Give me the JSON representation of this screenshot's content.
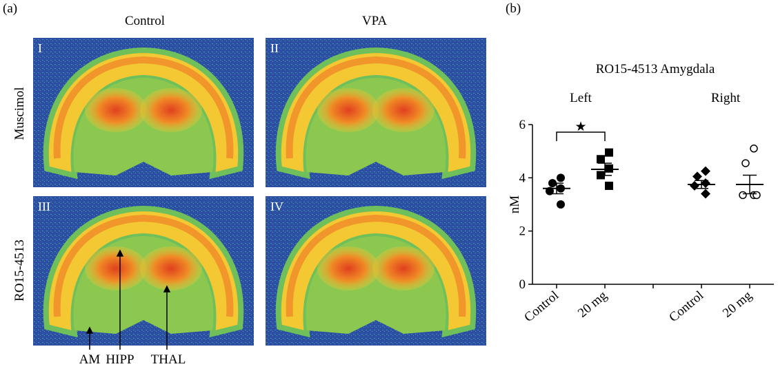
{
  "panel_a": {
    "label": "(a)",
    "columns": [
      "Control",
      "VPA"
    ],
    "rows": [
      "Muscimol",
      "RO15-4513"
    ],
    "images": [
      "I",
      "II",
      "III",
      "IV"
    ],
    "annotations": [
      "AM",
      "HIPP",
      "THAL"
    ]
  },
  "chart_data": {
    "type": "dot",
    "panel_label": "(b)",
    "title": "RO15-4513 Amygdala",
    "ylabel": "nM",
    "groups": [
      {
        "label": "Left",
        "span": [
          0,
          1
        ]
      },
      {
        "label": "Right",
        "span": [
          3,
          4
        ]
      }
    ],
    "categories": [
      "Control",
      "20 mg",
      null,
      "Control",
      "20 mg"
    ],
    "points": [
      [
        4.0,
        3.8,
        3.6,
        3.5,
        3.0
      ],
      [
        4.95,
        4.7,
        4.35,
        4.1,
        3.7
      ],
      null,
      [
        4.25,
        4.05,
        3.8,
        3.7,
        3.4
      ],
      [
        5.1,
        4.55,
        3.35,
        3.35,
        3.35
      ]
    ],
    "means": [
      3.6,
      4.32,
      null,
      3.75,
      3.75
    ],
    "sems": [
      0.2,
      0.23,
      null,
      0.15,
      0.35
    ],
    "markers": [
      "circle",
      "square",
      null,
      "diamond",
      "open-circle"
    ],
    "color": "#000000",
    "ylim": [
      0,
      6
    ],
    "yticks": [
      0,
      2,
      4,
      6
    ],
    "significance": {
      "between": [
        0,
        1
      ],
      "label": "★"
    }
  }
}
